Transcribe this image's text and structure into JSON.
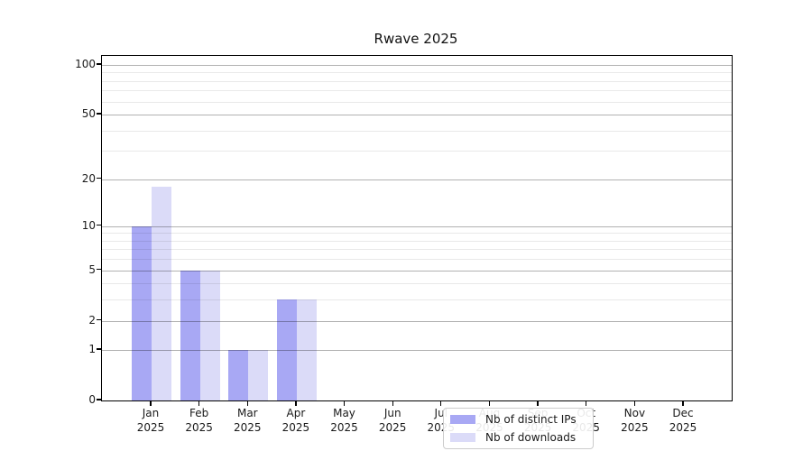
{
  "chart_data": {
    "type": "bar",
    "title": "Rwave 2025",
    "categories": [
      {
        "month": "Jan",
        "year": "2025"
      },
      {
        "month": "Feb",
        "year": "2025"
      },
      {
        "month": "Mar",
        "year": "2025"
      },
      {
        "month": "Apr",
        "year": "2025"
      },
      {
        "month": "May",
        "year": "2025"
      },
      {
        "month": "Jun",
        "year": "2025"
      },
      {
        "month": "Jul",
        "year": "2025"
      },
      {
        "month": "Aug",
        "year": "2025"
      },
      {
        "month": "Sep",
        "year": "2025"
      },
      {
        "month": "Oct",
        "year": "2025"
      },
      {
        "month": "Nov",
        "year": "2025"
      },
      {
        "month": "Dec",
        "year": "2025"
      }
    ],
    "series": [
      {
        "name": "Nb of distinct IPs",
        "color": "#a8a8f4",
        "values": [
          10,
          5,
          1,
          3,
          0,
          0,
          0,
          0,
          0,
          0,
          0,
          0
        ]
      },
      {
        "name": "Nb of downloads",
        "color": "#dbdbf8",
        "values": [
          18,
          5,
          1,
          3,
          0,
          0,
          0,
          0,
          0,
          0,
          0,
          0
        ]
      }
    ],
    "yscale": "log1p",
    "ylim": [
      0,
      113.4
    ],
    "y_major_ticks": [
      0,
      1,
      2,
      5,
      10,
      20,
      50,
      100
    ],
    "y_minor_ticks": [
      3,
      4,
      6,
      7,
      8,
      9,
      30,
      40,
      60,
      70,
      80,
      90
    ],
    "grid": "major-and-minor",
    "legend_position": "lower-center",
    "colors": {
      "major_grid": "#b2b2b2",
      "minor_grid": "#e9e9e9",
      "spine": "#000000",
      "text": "#1a1a1a"
    }
  }
}
